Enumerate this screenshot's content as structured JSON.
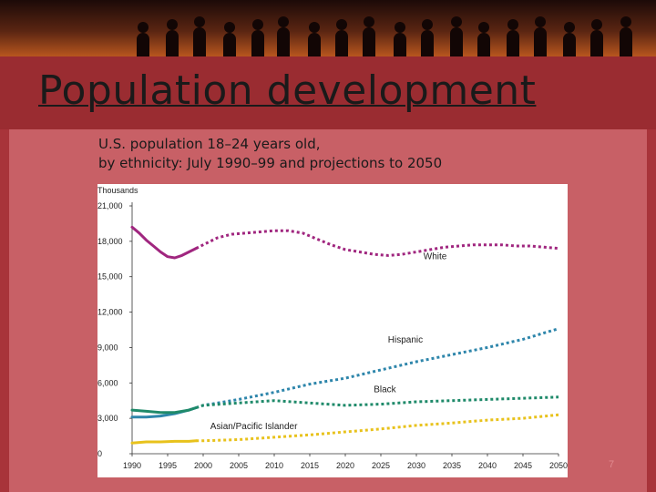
{
  "slide": {
    "title": "Population development",
    "subtitle_line1": "U.S. population 18–24 years old,",
    "subtitle_line2": "by ethnicity: July 1990–99 and projections to 2050",
    "page_number": "7"
  },
  "colors": {
    "white_series": "#a0267f",
    "hispanic_series": "#2e86ab",
    "black_series": "#1f8a6a",
    "asian_series": "#e8c21c"
  },
  "chart_data": {
    "type": "line",
    "ylabel": "Thousands",
    "xlabel": "",
    "ylim": [
      0,
      21000
    ],
    "xlim": [
      1990,
      2050
    ],
    "yticks": [
      "0",
      "3,000",
      "6,000",
      "9,000",
      "12,000",
      "15,000",
      "18,000",
      "21,000"
    ],
    "ytick_values": [
      0,
      3000,
      6000,
      9000,
      12000,
      15000,
      18000,
      21000
    ],
    "xticks": [
      "1990",
      "1995",
      "2000",
      "2005",
      "2010",
      "2015",
      "2020",
      "2025",
      "2030",
      "2035",
      "2040",
      "2045",
      "2050"
    ],
    "xtick_values": [
      1990,
      1995,
      2000,
      2005,
      2010,
      2015,
      2020,
      2025,
      2030,
      2035,
      2040,
      2045,
      2050
    ],
    "estimate_period": [
      1990,
      1999
    ],
    "projection_period": [
      1999,
      2050
    ],
    "series": [
      {
        "name": "White",
        "color_key": "white_series",
        "x": [
          1990,
          1991,
          1992,
          1993,
          1994,
          1995,
          1996,
          1997,
          1998,
          1999,
          2000,
          2002,
          2004,
          2006,
          2008,
          2010,
          2012,
          2014,
          2016,
          2018,
          2020,
          2022,
          2024,
          2026,
          2028,
          2030,
          2032,
          2034,
          2036,
          2038,
          2040,
          2042,
          2044,
          2046,
          2048,
          2050
        ],
        "values": [
          19200,
          18700,
          18100,
          17600,
          17100,
          16700,
          16600,
          16800,
          17100,
          17400,
          17700,
          18300,
          18600,
          18700,
          18800,
          18900,
          18900,
          18700,
          18200,
          17700,
          17300,
          17100,
          16900,
          16800,
          16900,
          17100,
          17300,
          17500,
          17600,
          17700,
          17700,
          17700,
          17600,
          17600,
          17500,
          17400
        ]
      },
      {
        "name": "Hispanic",
        "color_key": "hispanic_series",
        "x": [
          1990,
          1992,
          1994,
          1996,
          1998,
          1999,
          2000,
          2005,
          2010,
          2015,
          2020,
          2025,
          2030,
          2035,
          2040,
          2045,
          2050
        ],
        "values": [
          3100,
          3100,
          3200,
          3400,
          3700,
          3900,
          4100,
          4600,
          5200,
          5900,
          6400,
          7100,
          7800,
          8400,
          9000,
          9700,
          10600
        ]
      },
      {
        "name": "Black",
        "color_key": "black_series",
        "x": [
          1990,
          1992,
          1994,
          1996,
          1998,
          1999,
          2000,
          2005,
          2010,
          2015,
          2020,
          2025,
          2030,
          2035,
          2040,
          2045,
          2050
        ],
        "values": [
          3700,
          3600,
          3500,
          3500,
          3700,
          3900,
          4100,
          4300,
          4500,
          4300,
          4100,
          4200,
          4400,
          4500,
          4600,
          4700,
          4800
        ]
      },
      {
        "name": "Asian/Pacific Islander",
        "color_key": "asian_series",
        "x": [
          1990,
          1992,
          1994,
          1996,
          1998,
          1999,
          2000,
          2005,
          2010,
          2015,
          2020,
          2025,
          2030,
          2035,
          2040,
          2045,
          2050
        ],
        "values": [
          900,
          1000,
          1000,
          1050,
          1050,
          1100,
          1100,
          1200,
          1400,
          1600,
          1850,
          2100,
          2400,
          2600,
          2850,
          3000,
          3300
        ]
      }
    ]
  }
}
